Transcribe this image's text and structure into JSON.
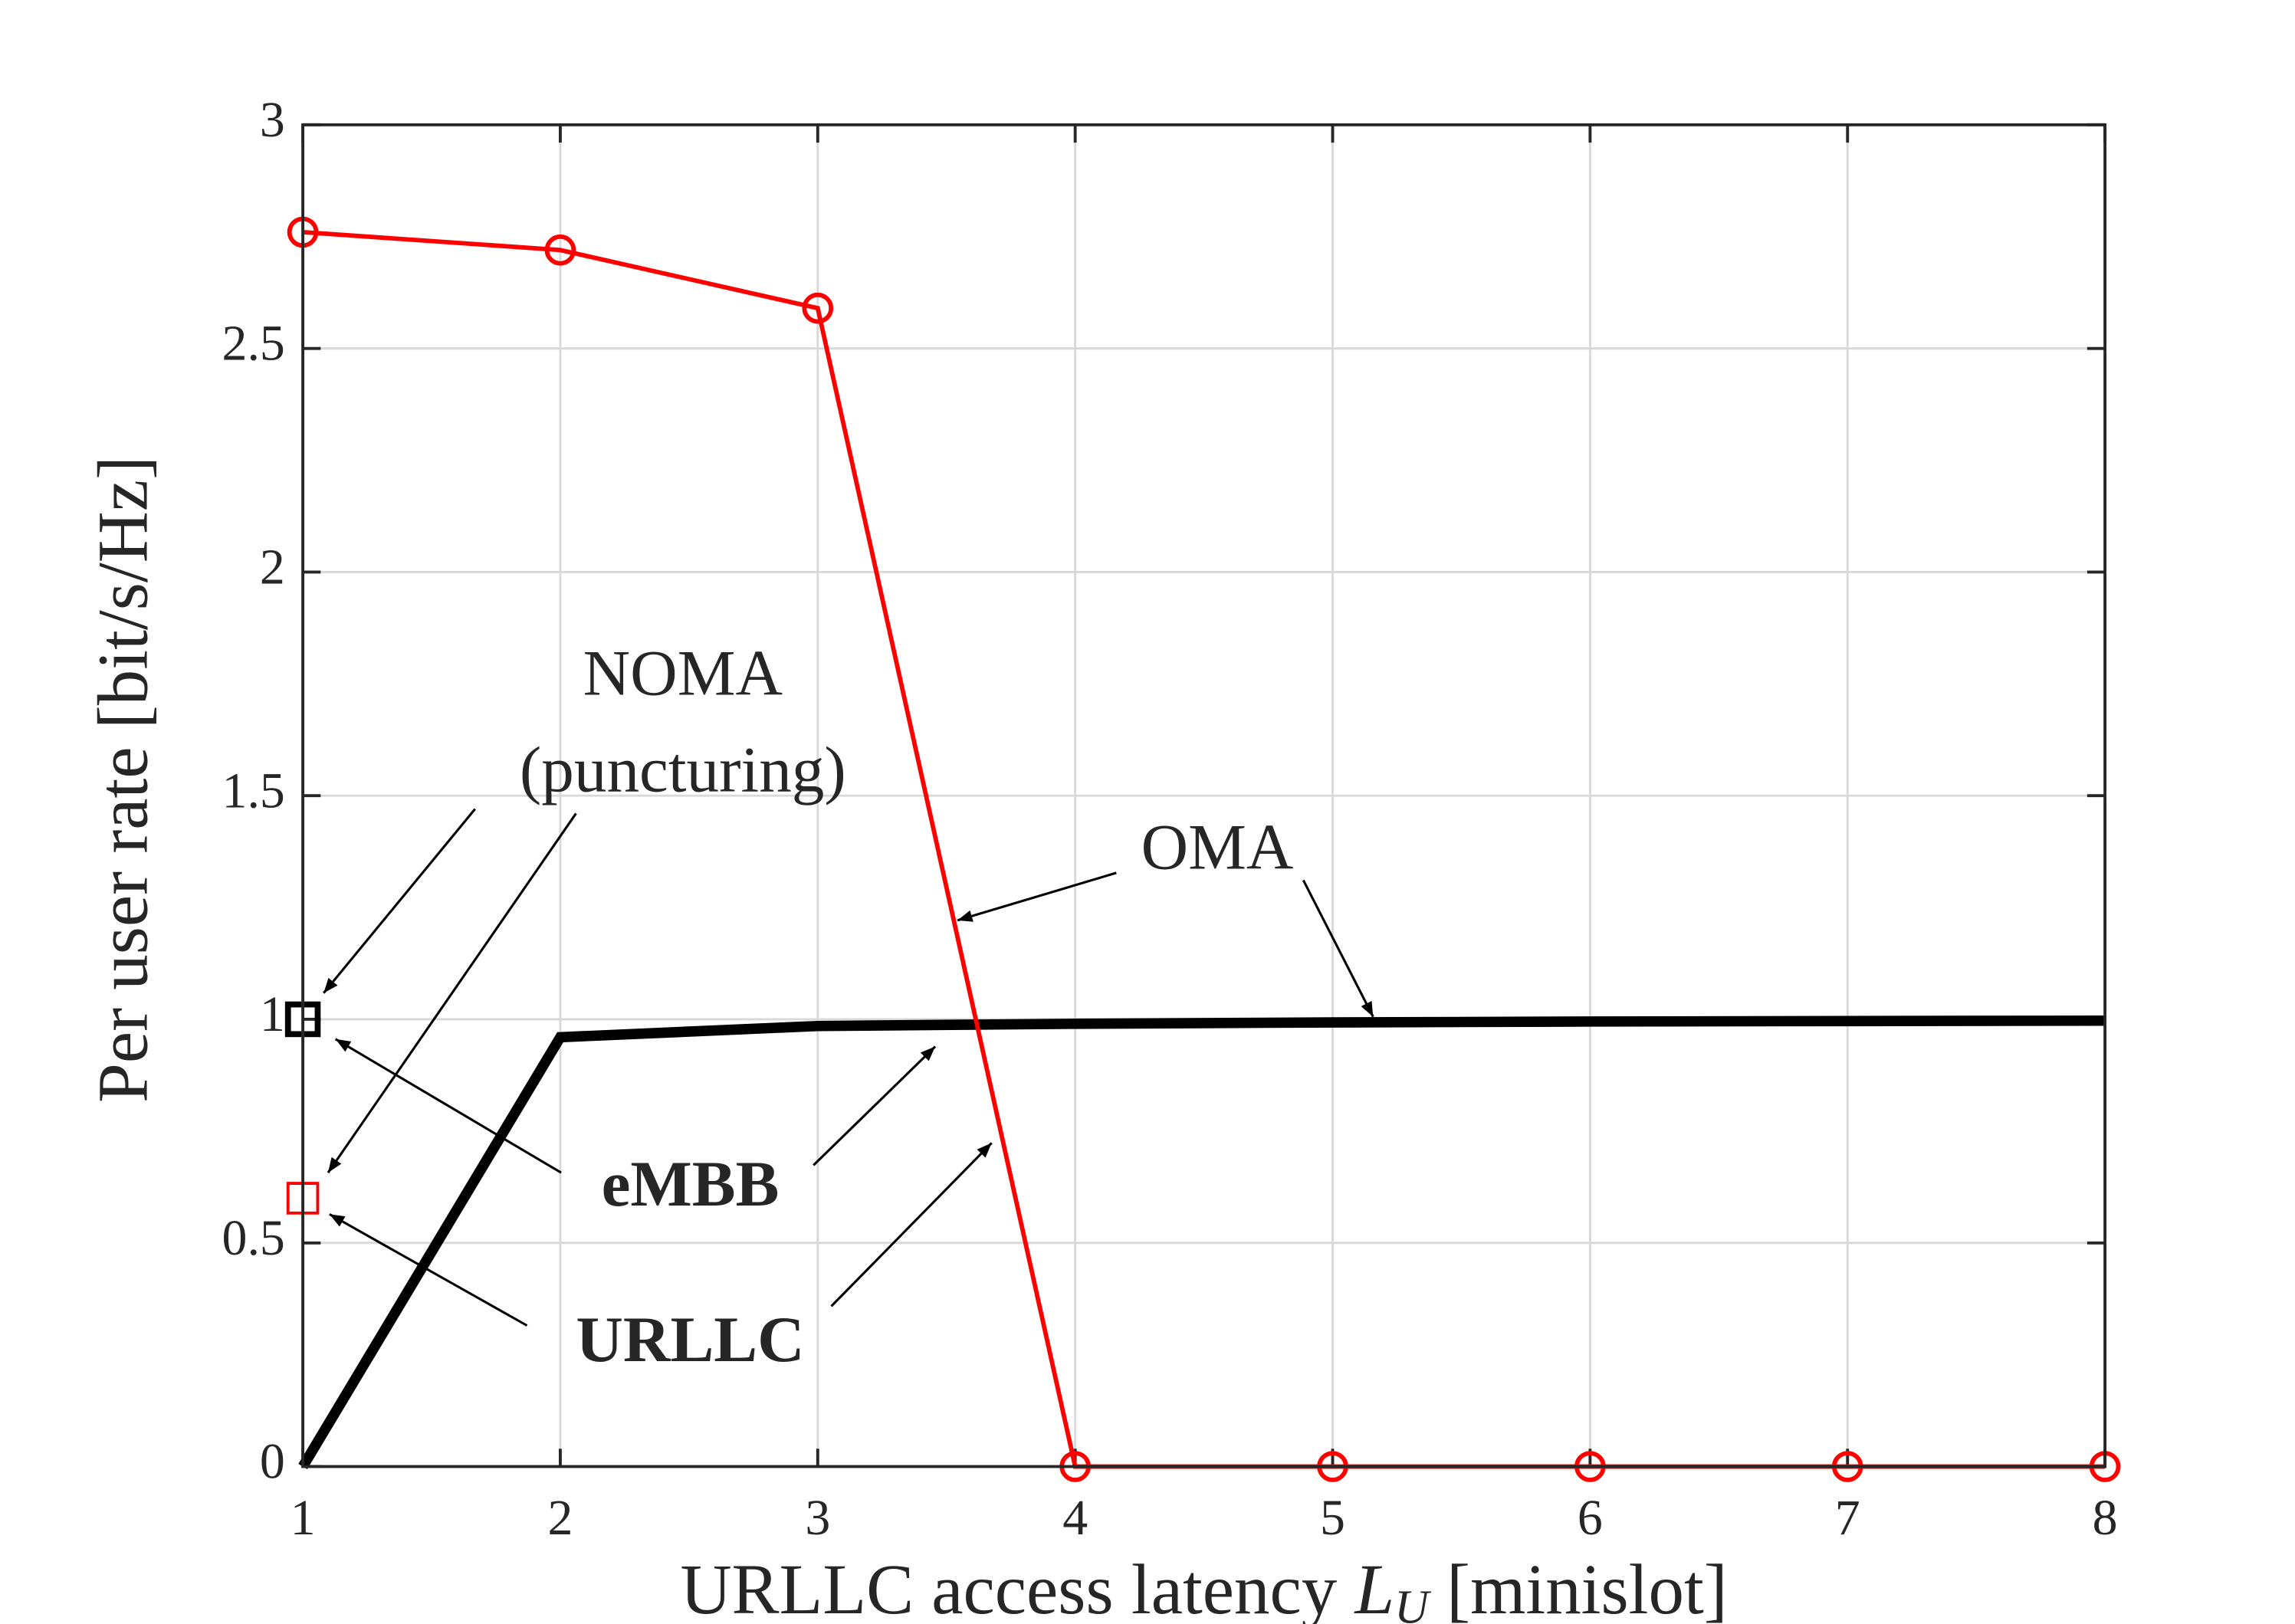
{
  "chart_data": {
    "type": "line",
    "ylabel": "Per user rate [bit/s/Hz]",
    "xlabel": [
      "URLLC access latency ",
      "L",
      "U",
      " [minislot]"
    ],
    "x": [
      1,
      2,
      3,
      4,
      5,
      6,
      7,
      8
    ],
    "xlim": [
      1,
      8
    ],
    "xticks": [
      1,
      2,
      3,
      4,
      5,
      6,
      7,
      8
    ],
    "ylim": [
      0,
      3
    ],
    "yticks": [
      0,
      0.5,
      1,
      1.5,
      2,
      2.5,
      3
    ],
    "grid": true,
    "series": [
      {
        "color": "#000000",
        "linewidth": 7,
        "marker": "none",
        "values": [
          0,
          0.96,
          0.985,
          0.99,
          0.993,
          0.995,
          0.996,
          0.997
        ]
      },
      {
        "color": "#ff0000",
        "linewidth": 3,
        "marker": "circle",
        "values": [
          2.76,
          2.72,
          2.59,
          0,
          0,
          0,
          0,
          0
        ]
      },
      {
        "color": "#000000",
        "linewidth": 4,
        "marker": "square",
        "values": [
          1.0,
          null,
          null,
          null,
          null,
          null,
          null,
          null
        ]
      },
      {
        "color": "#ff0000",
        "linewidth": 2,
        "marker": "square",
        "values": [
          0.6,
          null,
          null,
          null,
          null,
          null,
          null,
          null
        ]
      }
    ],
    "annotations": [
      {
        "text": "NOMA",
        "bold": false
      },
      {
        "text": "(puncturing)",
        "bold": false
      },
      {
        "text": "OMA",
        "bold": false
      },
      {
        "text": "eMBB",
        "bold": true
      },
      {
        "text": "URLLC",
        "bold": true
      }
    ]
  }
}
